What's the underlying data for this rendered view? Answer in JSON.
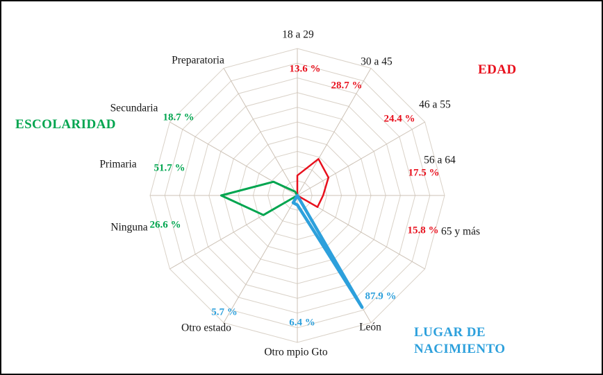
{
  "figure": {
    "background": "#ffffff",
    "border_color": "#0a0a0a"
  },
  "chart_data": {
    "type": "radar",
    "title": "",
    "axis_max": 100,
    "ring_interval": 10,
    "grid": true,
    "grid_color": "#d9d1c7",
    "spoke_color": "#ccc1b5",
    "legend_position": "around-plot",
    "categories": [
      "18 a 29",
      "30 a 45",
      "46 a 55",
      "56 a 64",
      "65 y más",
      "León",
      "Otro mpio Gto",
      "Otro estado",
      "Ninguna",
      "Primaria",
      "Secundaria",
      "Preparatoria"
    ],
    "series": [
      {
        "name": "EDAD",
        "color": "#e8101d",
        "points": [
          {
            "category": "18 a 29",
            "value": 13.6,
            "label": "13.6 %"
          },
          {
            "category": "30 a 45",
            "value": 28.7,
            "label": "28.7 %"
          },
          {
            "category": "46 a 55",
            "value": 24.4,
            "label": "24.4 %"
          },
          {
            "category": "56 a 64",
            "value": 17.5,
            "label": "17.5 %"
          },
          {
            "category": "65 y más",
            "value": 15.8,
            "label": "15.8 %"
          }
        ]
      },
      {
        "name": "ESCOLARIDAD",
        "color": "#00a54f",
        "points": [
          {
            "category": "Ninguna",
            "value": 26.6,
            "label": "26.6 %"
          },
          {
            "category": "Primaria",
            "value": 51.7,
            "label": "51.7 %"
          },
          {
            "category": "Secundaria",
            "value": 18.7,
            "label": "18.7 %"
          },
          {
            "category": "Preparatoria",
            "value": 3.0,
            "label": ""
          }
        ]
      },
      {
        "name": "LUGAR DE NACIMIENTO",
        "color": "#2da0dc",
        "points": [
          {
            "category": "León",
            "value": 87.9,
            "label": "87.9 %"
          },
          {
            "category": "Otro mpio Gto",
            "value": 6.4,
            "label": "6.4 %"
          },
          {
            "category": "Otro estado",
            "value": 5.7,
            "label": "5.7 %"
          }
        ]
      }
    ]
  }
}
